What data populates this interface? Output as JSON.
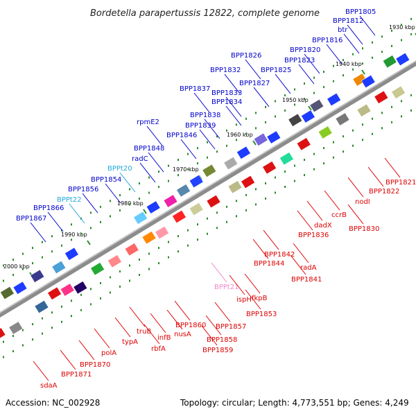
{
  "title": "Bordetella parapertussis 12822, complete genome",
  "footer": {
    "accession": "Accession: NC_002928",
    "summary": "Topology: circular; Length: 4,773,551 bp; Genes: 4,249"
  },
  "colors": {
    "backbone": "#7f7f7f",
    "label_blue": "#0000cc",
    "label_red": "#dd0000",
    "label_cyan": "#22aadd",
    "label_pink": "#ee88cc",
    "tick_green": "#2a8a2a"
  },
  "ticks": [
    "1930 kbp",
    "1940 kbp",
    "1950 kbp",
    "1960 kbp",
    "1970 kbp",
    "1980 kbp",
    "1990 kbp",
    "2000 kbp"
  ],
  "labels_top": [
    {
      "text": "BPP1805",
      "color": "blue"
    },
    {
      "text": "BPP1812",
      "color": "blue"
    },
    {
      "text": "btr",
      "color": "blue"
    },
    {
      "text": "BPP1816",
      "color": "blue"
    },
    {
      "text": "BPP1820",
      "color": "blue"
    },
    {
      "text": "BPP1823",
      "color": "blue"
    },
    {
      "text": "BPP1826",
      "color": "blue"
    },
    {
      "text": "BPP1825",
      "color": "blue"
    },
    {
      "text": "BPP1832",
      "color": "blue"
    },
    {
      "text": "BPP1827",
      "color": "blue"
    },
    {
      "text": "BPP1837",
      "color": "blue"
    },
    {
      "text": "BPP1833",
      "color": "blue"
    },
    {
      "text": "BPP1834",
      "color": "blue"
    },
    {
      "text": "BPP1838",
      "color": "blue"
    },
    {
      "text": "rpmE2",
      "color": "blue"
    },
    {
      "text": "BPP1839",
      "color": "blue"
    },
    {
      "text": "BPP1846",
      "color": "blue"
    },
    {
      "text": "BPP1848",
      "color": "blue"
    },
    {
      "text": "radC",
      "color": "blue"
    },
    {
      "text": "BPPt20",
      "color": "cyan"
    },
    {
      "text": "BPP1854",
      "color": "blue"
    },
    {
      "text": "BPP1856",
      "color": "blue"
    },
    {
      "text": "BPPt22",
      "color": "cyan"
    },
    {
      "text": "BPP1866",
      "color": "blue"
    },
    {
      "text": "BPP1867",
      "color": "blue"
    }
  ],
  "labels_bottom": [
    {
      "text": "BPP1821",
      "color": "red"
    },
    {
      "text": "BPP1822",
      "color": "red"
    },
    {
      "text": "nodI",
      "color": "red"
    },
    {
      "text": "ccrB",
      "color": "red"
    },
    {
      "text": "BPP1830",
      "color": "red"
    },
    {
      "text": "dadX",
      "color": "red"
    },
    {
      "text": "BPP1836",
      "color": "red"
    },
    {
      "text": "BPP1842",
      "color": "red"
    },
    {
      "text": "BPP1844",
      "color": "red"
    },
    {
      "text": "radA",
      "color": "red"
    },
    {
      "text": "BPP1841",
      "color": "red"
    },
    {
      "text": "BPPt21",
      "color": "pink"
    },
    {
      "text": "fkpB",
      "color": "red"
    },
    {
      "text": "ispH",
      "color": "red"
    },
    {
      "text": "BPP1853",
      "color": "red"
    },
    {
      "text": "BPP1860",
      "color": "red"
    },
    {
      "text": "BPP1857",
      "color": "red"
    },
    {
      "text": "truB",
      "color": "red"
    },
    {
      "text": "infB",
      "color": "red"
    },
    {
      "text": "nusA",
      "color": "red"
    },
    {
      "text": "BPP1858",
      "color": "red"
    },
    {
      "text": "typA",
      "color": "red"
    },
    {
      "text": "rbfA",
      "color": "red"
    },
    {
      "text": "BPP1859",
      "color": "red"
    },
    {
      "text": "polA",
      "color": "red"
    },
    {
      "text": "BPP1870",
      "color": "red"
    },
    {
      "text": "BPP1871",
      "color": "red"
    },
    {
      "text": "sdaA",
      "color": "red"
    }
  ]
}
